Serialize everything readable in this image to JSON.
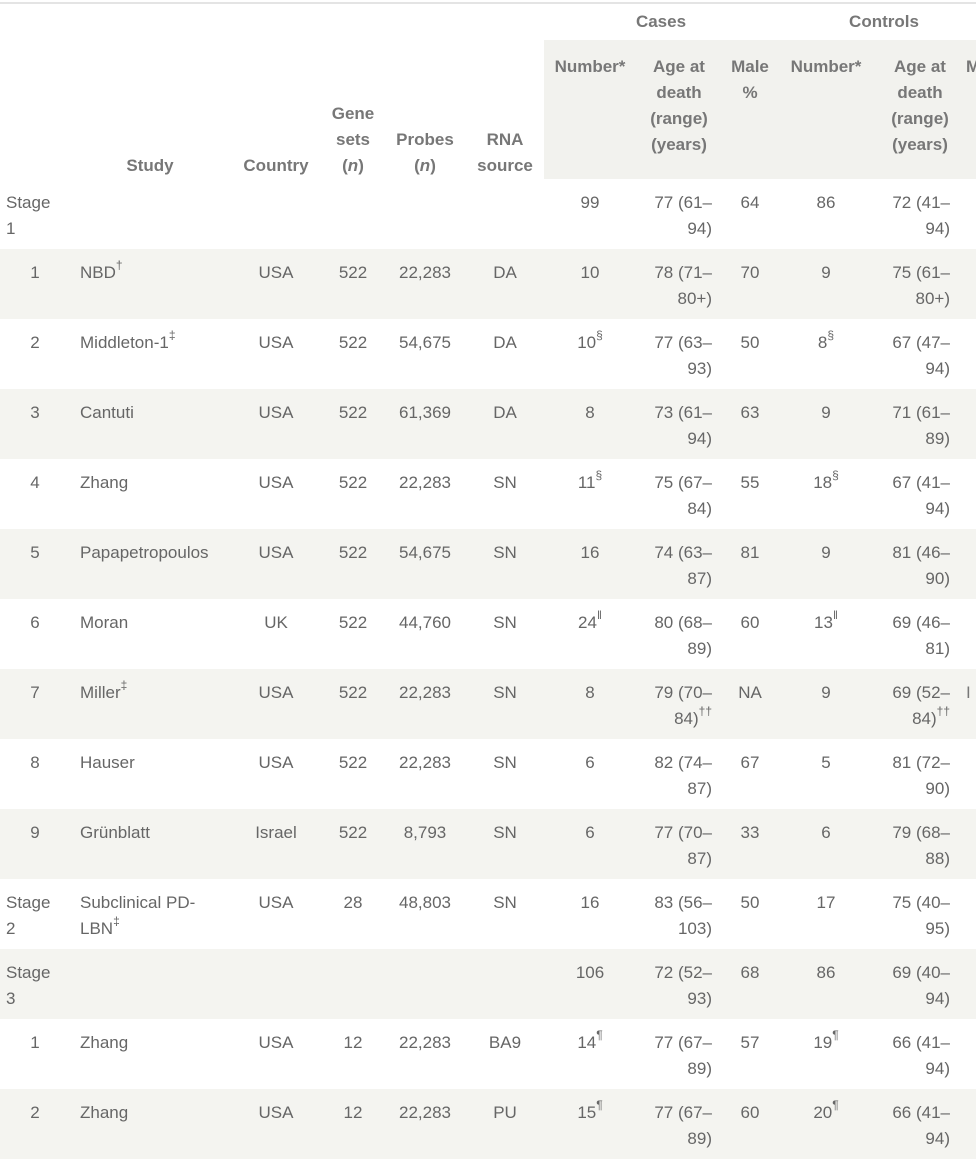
{
  "header": {
    "group_cases": "Cases",
    "group_controls": "Controls",
    "col_study": "Study",
    "col_country": "Country",
    "col_gene_sets": [
      "Gene",
      "sets",
      "(n)"
    ],
    "col_probes": [
      "Probes",
      "(n)"
    ],
    "col_rna": [
      "RNA",
      "source"
    ],
    "col_number": "Number*",
    "col_age": [
      "Age at",
      "death",
      "(range)",
      "(years)"
    ],
    "col_male": [
      "Male",
      "%"
    ],
    "col_ctrl_number": "Number*",
    "col_ctrl_age": [
      "Age at",
      "death",
      "(range)",
      "(years)"
    ],
    "col_ctrl_male_partial": "M"
  },
  "rows": [
    {
      "idx": "Stage 1",
      "study": "",
      "study_sup": "",
      "country": "",
      "gene_sets": "",
      "probes": "",
      "rna": "",
      "num": "99",
      "num_sup": "",
      "age": "77 (61–94)",
      "age_sup": "",
      "male": "64",
      "cnum": "86",
      "cnum_sup": "",
      "cage": "72 (41–94)",
      "cage_sup": "",
      "cmale": ""
    },
    {
      "idx": "1",
      "study": "NBD",
      "study_sup": "†",
      "country": "USA",
      "gene_sets": "522",
      "probes": "22,283",
      "rna": "DA",
      "num": "10",
      "num_sup": "",
      "age": "78 (71–80+)",
      "age_sup": "",
      "male": "70",
      "cnum": "9",
      "cnum_sup": "",
      "cage": "75 (61–80+)",
      "cage_sup": "",
      "cmale": ""
    },
    {
      "idx": "2",
      "study": "Middleton-1",
      "study_sup": "‡",
      "country": "USA",
      "gene_sets": "522",
      "probes": "54,675",
      "rna": "DA",
      "num": "10",
      "num_sup": "§",
      "age": "77 (63–93)",
      "age_sup": "",
      "male": "50",
      "cnum": "8",
      "cnum_sup": "§",
      "cage": "67 (47–94)",
      "cage_sup": "",
      "cmale": ""
    },
    {
      "idx": "3",
      "study": "Cantuti",
      "study_sup": "",
      "country": "USA",
      "gene_sets": "522",
      "probes": "61,369",
      "rna": "DA",
      "num": "8",
      "num_sup": "",
      "age": "73 (61–94)",
      "age_sup": "",
      "male": "63",
      "cnum": "9",
      "cnum_sup": "",
      "cage": "71 (61–89)",
      "cage_sup": "",
      "cmale": ""
    },
    {
      "idx": "4",
      "study": "Zhang",
      "study_sup": "",
      "country": "USA",
      "gene_sets": "522",
      "probes": "22,283",
      "rna": "SN",
      "num": "11",
      "num_sup": "§",
      "age": "75 (67–84)",
      "age_sup": "",
      "male": "55",
      "cnum": "18",
      "cnum_sup": "§",
      "cage": "67 (41–94)",
      "cage_sup": "",
      "cmale": ""
    },
    {
      "idx": "5",
      "study": "Papapetropoulos",
      "study_sup": "",
      "country": "USA",
      "gene_sets": "522",
      "probes": "54,675",
      "rna": "SN",
      "num": "16",
      "num_sup": "",
      "age": "74 (63–87)",
      "age_sup": "",
      "male": "81",
      "cnum": "9",
      "cnum_sup": "",
      "cage": "81 (46–90)",
      "cage_sup": "",
      "cmale": ""
    },
    {
      "idx": "6",
      "study": "Moran",
      "study_sup": "",
      "country": "UK",
      "gene_sets": "522",
      "probes": "44,760",
      "rna": "SN",
      "num": "24",
      "num_sup": "‖",
      "age": "80 (68–89)",
      "age_sup": "",
      "male": "60",
      "cnum": "13",
      "cnum_sup": "‖",
      "cage": "69 (46–81)",
      "cage_sup": "",
      "cmale": ""
    },
    {
      "idx": "7",
      "study": "Miller",
      "study_sup": "‡",
      "country": "USA",
      "gene_sets": "522",
      "probes": "22,283",
      "rna": "SN",
      "num": "8",
      "num_sup": "",
      "age": "79 (70–84)",
      "age_sup": "††",
      "male": "NA",
      "cnum": "9",
      "cnum_sup": "",
      "cage": "69 (52–84)",
      "cage_sup": "††",
      "cmale": "I"
    },
    {
      "idx": "8",
      "study": "Hauser",
      "study_sup": "",
      "country": "USA",
      "gene_sets": "522",
      "probes": "22,283",
      "rna": "SN",
      "num": "6",
      "num_sup": "",
      "age": "82 (74–87)",
      "age_sup": "",
      "male": "67",
      "cnum": "5",
      "cnum_sup": "",
      "cage": "81 (72–90)",
      "cage_sup": "",
      "cmale": ""
    },
    {
      "idx": "9",
      "study": "Grünblatt",
      "study_sup": "",
      "country": "Israel",
      "gene_sets": "522",
      "probes": "8,793",
      "rna": "SN",
      "num": "6",
      "num_sup": "",
      "age": "77 (70–87)",
      "age_sup": "",
      "male": "33",
      "cnum": "6",
      "cnum_sup": "",
      "cage": "79 (68–88)",
      "cage_sup": "",
      "cmale": ""
    },
    {
      "idx": "Stage 2",
      "study": "Subclinical PD-LBN",
      "study_sup": "‡",
      "country": "USA",
      "gene_sets": "28",
      "probes": "48,803",
      "rna": "SN",
      "num": "16",
      "num_sup": "",
      "age": "83 (56–103)",
      "age_sup": "",
      "male": "50",
      "cnum": "17",
      "cnum_sup": "",
      "cage": "75 (40–95)",
      "cage_sup": "",
      "cmale": ""
    },
    {
      "idx": "Stage 3",
      "study": "",
      "study_sup": "",
      "country": "",
      "gene_sets": "",
      "probes": "",
      "rna": "",
      "num": "106",
      "num_sup": "",
      "age": "72 (52–93)",
      "age_sup": "",
      "male": "68",
      "cnum": "86",
      "cnum_sup": "",
      "cage": "69 (40–94)",
      "cage_sup": "",
      "cmale": ""
    },
    {
      "idx": "1",
      "study": "Zhang",
      "study_sup": "",
      "country": "USA",
      "gene_sets": "12",
      "probes": "22,283",
      "rna": "BA9",
      "num": "14",
      "num_sup": "¶",
      "age": "77 (67–89)",
      "age_sup": "",
      "male": "57",
      "cnum": "19",
      "cnum_sup": "¶",
      "cage": "66 (41–94)",
      "cage_sup": "",
      "cmale": ""
    },
    {
      "idx": "2",
      "study": "Zhang",
      "study_sup": "",
      "country": "USA",
      "gene_sets": "12",
      "probes": "22,283",
      "rna": "PU",
      "num": "15",
      "num_sup": "¶",
      "age": "77 (67–89)",
      "age_sup": "",
      "male": "60",
      "cnum": "20",
      "cnum_sup": "¶",
      "cage": "66 (41–94)",
      "cage_sup": "",
      "cmale": ""
    }
  ]
}
